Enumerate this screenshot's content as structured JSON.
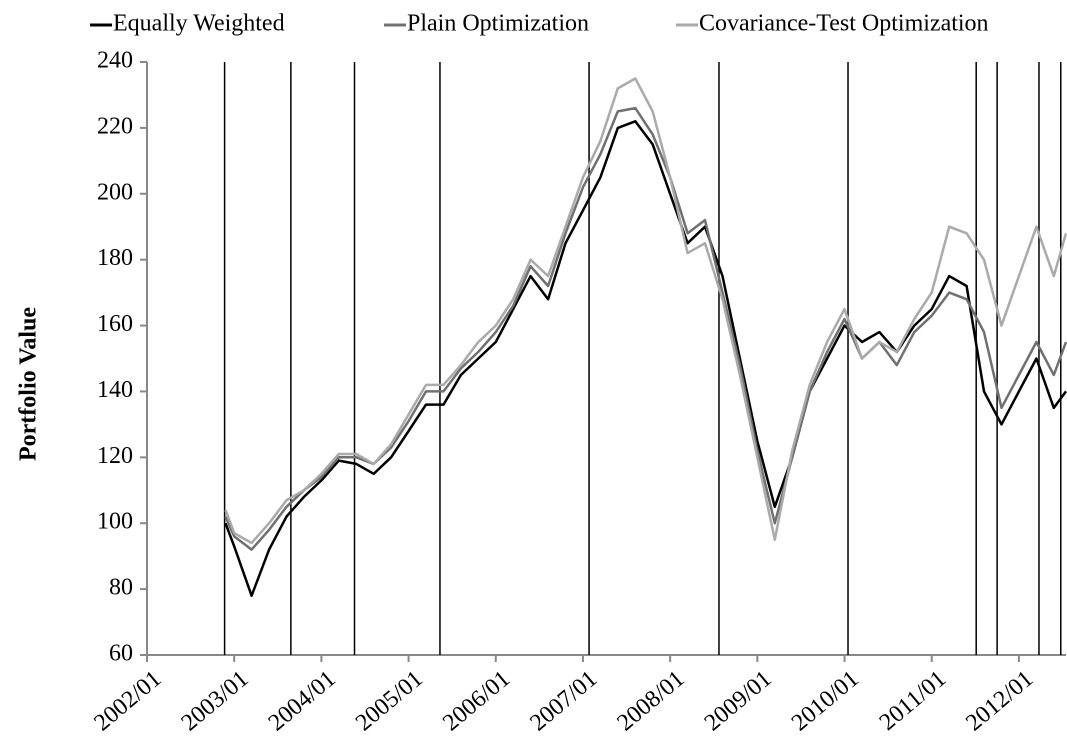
{
  "chart_data": {
    "type": "line",
    "y_label": "Portfolio Value",
    "x": [
      2002.9,
      2003.0,
      2003.2,
      2003.4,
      2003.6,
      2003.8,
      2004.0,
      2004.2,
      2004.4,
      2004.6,
      2004.8,
      2005.0,
      2005.2,
      2005.4,
      2005.6,
      2005.8,
      2006.0,
      2006.2,
      2006.4,
      2006.6,
      2006.8,
      2007.0,
      2007.2,
      2007.4,
      2007.6,
      2007.8,
      2008.0,
      2008.2,
      2008.4,
      2008.6,
      2008.8,
      2009.0,
      2009.2,
      2009.4,
      2009.6,
      2009.8,
      2010.0,
      2010.2,
      2010.4,
      2010.6,
      2010.8,
      2011.0,
      2011.2,
      2011.4,
      2011.6,
      2011.8,
      2012.0,
      2012.2,
      2012.4,
      2012.54
    ],
    "series": [
      {
        "name": "Equally Weighted",
        "color": "#000000",
        "values": [
          100,
          93,
          78,
          92,
          102,
          108,
          113,
          119,
          118,
          115,
          120,
          128,
          136,
          136,
          145,
          150,
          155,
          165,
          175,
          168,
          185,
          195,
          205,
          220,
          222,
          215,
          200,
          185,
          190,
          175,
          150,
          125,
          105,
          120,
          140,
          150,
          160,
          155,
          158,
          152,
          160,
          165,
          175,
          172,
          140,
          130,
          140,
          150,
          135,
          140
        ]
      },
      {
        "name": "Plain Optimization",
        "color": "#707070",
        "values": [
          102,
          96,
          92,
          98,
          105,
          110,
          114,
          120,
          120,
          118,
          123,
          131,
          140,
          140,
          147,
          152,
          158,
          166,
          178,
          172,
          188,
          202,
          212,
          225,
          226,
          218,
          205,
          188,
          192,
          170,
          148,
          122,
          100,
          120,
          140,
          152,
          162,
          150,
          155,
          148,
          158,
          163,
          170,
          168,
          158,
          135,
          145,
          155,
          145,
          155
        ]
      },
      {
        "name": "Covariance-Test Optimization",
        "color": "#aaaaaa",
        "values": [
          104,
          97,
          94,
          100,
          107,
          110,
          115,
          121,
          121,
          118,
          124,
          133,
          142,
          142,
          148,
          155,
          160,
          168,
          180,
          175,
          190,
          205,
          216,
          232,
          235,
          225,
          205,
          182,
          185,
          168,
          145,
          120,
          95,
          122,
          142,
          155,
          165,
          150,
          155,
          152,
          162,
          170,
          190,
          188,
          180,
          160,
          175,
          190,
          175,
          188
        ]
      }
    ],
    "vlines": [
      2002.89,
      2003.65,
      2004.38,
      2005.36,
      2007.07,
      2008.56,
      2010.04,
      2011.51,
      2011.75,
      2012.23,
      2012.48
    ],
    "xlim": [
      2002,
      2012.54
    ],
    "xticks": [
      {
        "value": 2002,
        "label": "2002/01"
      },
      {
        "value": 2003,
        "label": "2003/01"
      },
      {
        "value": 2004,
        "label": "2004/01"
      },
      {
        "value": 2005,
        "label": "2005/01"
      },
      {
        "value": 2006,
        "label": "2006/01"
      },
      {
        "value": 2007,
        "label": "2007/01"
      },
      {
        "value": 2008,
        "label": "2008/01"
      },
      {
        "value": 2009,
        "label": "2009/01"
      },
      {
        "value": 2010,
        "label": "2010/01"
      },
      {
        "value": 2011,
        "label": "2011/01"
      },
      {
        "value": 2012,
        "label": "2012/01"
      }
    ],
    "ylim": [
      60,
      240
    ],
    "yticks": [
      60,
      80,
      100,
      120,
      140,
      160,
      180,
      200,
      220,
      240
    ],
    "legend": "top"
  }
}
